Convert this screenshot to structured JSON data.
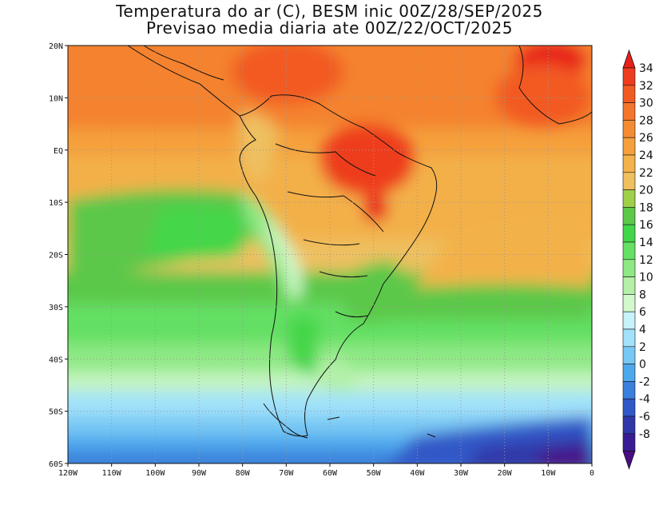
{
  "title": {
    "line1": "Temperatura do ar (C), BESM inic 00Z/28/SEP/2025",
    "line2": "Previsao media diaria ate 00Z/22/OCT/2025"
  },
  "map": {
    "lon_range": [
      -120,
      0
    ],
    "lat_range": [
      -60,
      20
    ],
    "lat_ticks": [
      "20N",
      "10N",
      "EQ",
      "10S",
      "20S",
      "30S",
      "40S",
      "50S",
      "60S"
    ],
    "lon_ticks": [
      "120W",
      "110W",
      "100W",
      "90W",
      "80W",
      "70W",
      "60W",
      "50W",
      "40W",
      "30W",
      "20W",
      "10W",
      "0"
    ],
    "grid_style": "dotted"
  },
  "colorbar": {
    "labels": [
      "34",
      "32",
      "30",
      "28",
      "26",
      "24",
      "22",
      "20",
      "18",
      "16",
      "14",
      "12",
      "10",
      "8",
      "6",
      "4",
      "2",
      "0",
      "-2",
      "-4",
      "-6",
      "-8"
    ],
    "colors_top_to_bottom": [
      "#e8201a",
      "#ee3c1e",
      "#f25a24",
      "#f4762c",
      "#f58c34",
      "#f5a03c",
      "#f3b24a",
      "#eec060",
      "#9fd04a",
      "#5cc848",
      "#44d64a",
      "#64e064",
      "#8ee884",
      "#b4f0a8",
      "#d2f8cc",
      "#c8f2fa",
      "#a2e2fa",
      "#78c8f4",
      "#4ea8ec",
      "#3a80dc",
      "#3058c8",
      "#3038a8",
      "#3a1c92",
      "#4a0c86"
    ]
  }
}
